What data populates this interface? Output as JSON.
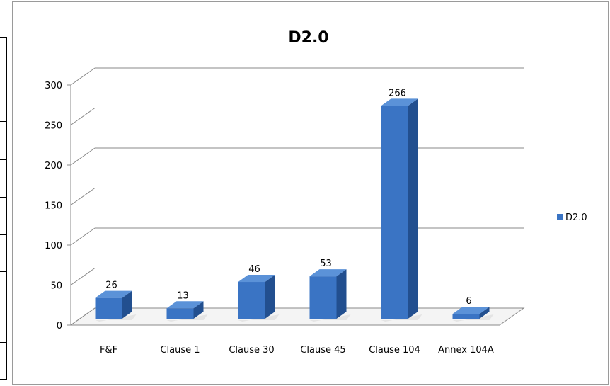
{
  "chart_data": {
    "type": "bar",
    "title": "D2.0",
    "categories": [
      "F&F",
      "Clause 1",
      "Clause 30",
      "Clause 45",
      "Clause 104",
      "Annex 104A"
    ],
    "series": [
      {
        "name": "D2.0",
        "values": [
          26,
          13,
          46,
          53,
          266,
          6
        ]
      }
    ],
    "data_labels": [
      "26",
      "13",
      "46",
      "53",
      "266",
      "6"
    ],
    "ylim": [
      0,
      300
    ],
    "yticks": [
      "0",
      "50",
      "100",
      "150",
      "200",
      "250",
      "300"
    ],
    "grid": true,
    "legend_position": "right",
    "style": "3d-column",
    "bar_color": "#3a74c4",
    "bar_side_color": "#224f8f",
    "bar_top_color": "#5b92d8"
  }
}
